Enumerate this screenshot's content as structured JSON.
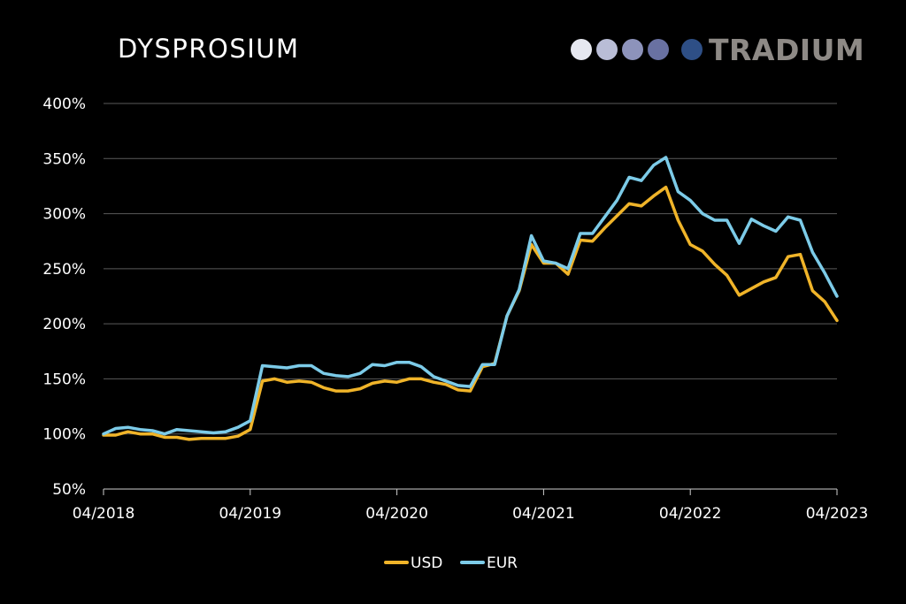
{
  "brand": {
    "name": "TRADIUM",
    "dot_colors": [
      "#e6e8f0",
      "#b9bdd6",
      "#8d93bb",
      "#6971a2",
      "#2e4f86"
    ]
  },
  "chart_data": {
    "type": "line",
    "title": "DYSPROSIUM",
    "x_tick_labels": [
      "04/2018",
      "04/2019",
      "04/2020",
      "04/2021",
      "04/2022",
      "04/2023"
    ],
    "y_tick_labels": [
      "50%",
      "100%",
      "150%",
      "200%",
      "250%",
      "300%",
      "350%",
      "400%"
    ],
    "ylim": [
      50,
      400
    ],
    "y_unit": "%",
    "grid": true,
    "legend_position": "bottom-center",
    "series": [
      {
        "name": "USD",
        "color": "#f0b429",
        "values": [
          99,
          99,
          102,
          100,
          100,
          97,
          97,
          95,
          96,
          96,
          96,
          98,
          104,
          148,
          150,
          147,
          148,
          147,
          142,
          139,
          139,
          141,
          146,
          148,
          147,
          150,
          150,
          147,
          145,
          140,
          139,
          161,
          164,
          207,
          230,
          272,
          255,
          255,
          245,
          276,
          275,
          287,
          298,
          309,
          307,
          316,
          324,
          294,
          272,
          266,
          254,
          244,
          226,
          232,
          238,
          242,
          261,
          263,
          230,
          220,
          203
        ]
      },
      {
        "name": "EUR",
        "color": "#7ccbe8",
        "values": [
          100,
          105,
          106,
          104,
          103,
          100,
          104,
          103,
          102,
          101,
          102,
          106,
          112,
          162,
          161,
          160,
          162,
          162,
          155,
          153,
          152,
          155,
          163,
          162,
          165,
          165,
          161,
          152,
          148,
          144,
          143,
          163,
          163,
          207,
          231,
          280,
          257,
          255,
          250,
          282,
          282,
          297,
          312,
          333,
          330,
          344,
          351,
          320,
          312,
          300,
          294,
          294,
          273,
          295,
          289,
          284,
          297,
          294,
          265,
          246,
          225
        ]
      }
    ]
  }
}
